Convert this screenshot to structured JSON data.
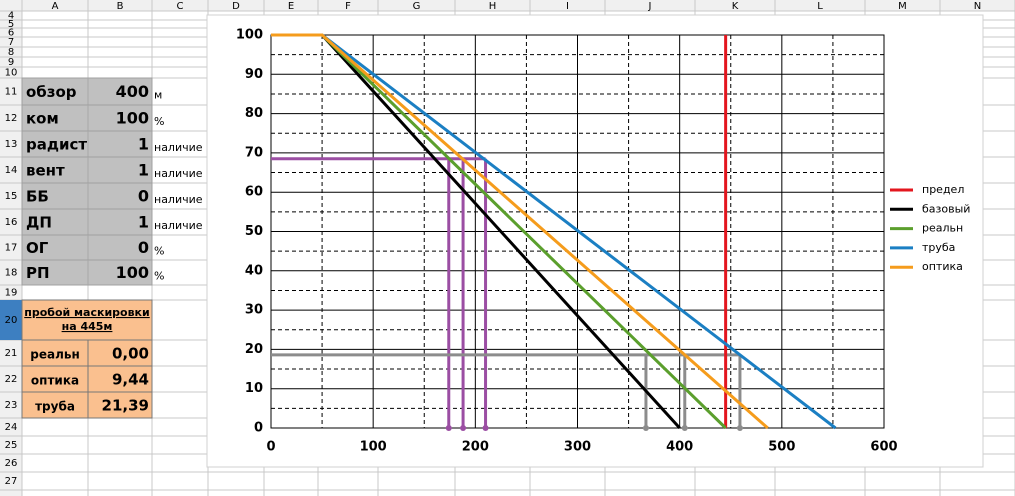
{
  "sheet": {
    "column_headers": [
      "A",
      "B",
      "C",
      "D",
      "E",
      "F",
      "G",
      "H",
      "I",
      "J",
      "K",
      "L",
      "M",
      "N"
    ],
    "row_numbers": [
      "4",
      "5",
      "6",
      "7",
      "8",
      "9",
      "10",
      "11",
      "12",
      "13",
      "14",
      "15",
      "16",
      "17",
      "18",
      "19",
      "20",
      "21",
      "22",
      "23",
      "24",
      "25",
      "26",
      "27"
    ],
    "params": [
      [
        "обзор",
        "400",
        "м"
      ],
      [
        "ком",
        "100",
        "%"
      ],
      [
        "радист",
        "1",
        "наличие"
      ],
      [
        "вент",
        "1",
        "наличие"
      ],
      [
        "ББ",
        "0",
        "наличие"
      ],
      [
        "ДП",
        "1",
        "наличие"
      ],
      [
        "ОГ",
        "0",
        "%"
      ],
      [
        "РП",
        "100",
        "%"
      ]
    ],
    "result": {
      "title": [
        "пробой маскировки",
        "на 445м"
      ],
      "rows": [
        [
          "реальн",
          "0,00"
        ],
        [
          "оптика",
          "9,44"
        ],
        [
          "труба",
          "21,39"
        ]
      ]
    }
  },
  "chart_data": {
    "type": "line",
    "xlim": [
      0,
      600
    ],
    "xticks": [
      0,
      100,
      200,
      300,
      400,
      500,
      600
    ],
    "xminor": [
      50,
      150,
      250,
      350,
      450,
      550
    ],
    "ylim": [
      0,
      100
    ],
    "yticks": [
      0,
      10,
      20,
      30,
      40,
      50,
      60,
      70,
      80,
      90,
      100
    ],
    "yminor": [
      5,
      15,
      25,
      35,
      45,
      55,
      65,
      75,
      85,
      95
    ],
    "grid": true,
    "legend": "right",
    "series": [
      {
        "name": "предел",
        "color": "#e3161e",
        "x": [
          445,
          445
        ],
        "values": [
          0,
          100
        ]
      },
      {
        "name": "базовый",
        "color": "#000000",
        "x": [
          0,
          50,
          400
        ],
        "values": [
          100,
          100,
          0
        ]
      },
      {
        "name": "реальн",
        "color": "#5b9f2d",
        "x": [
          0,
          50,
          445
        ],
        "values": [
          100,
          100,
          0
        ]
      },
      {
        "name": "труба",
        "color": "#1b7fc3",
        "x": [
          0,
          50,
          552.5
        ],
        "values": [
          100,
          100,
          0
        ]
      },
      {
        "name": "оптика",
        "color": "#f59c1c",
        "x": [
          0,
          50,
          486.2
        ],
        "values": [
          100,
          100,
          0
        ]
      }
    ],
    "guides": [
      {
        "color": "#9b4ea3",
        "y": 68.5,
        "x": [
          174,
          188,
          210
        ]
      },
      {
        "color": "#8c8c8c",
        "y": 18.6,
        "x": [
          367,
          405,
          459
        ]
      }
    ]
  }
}
